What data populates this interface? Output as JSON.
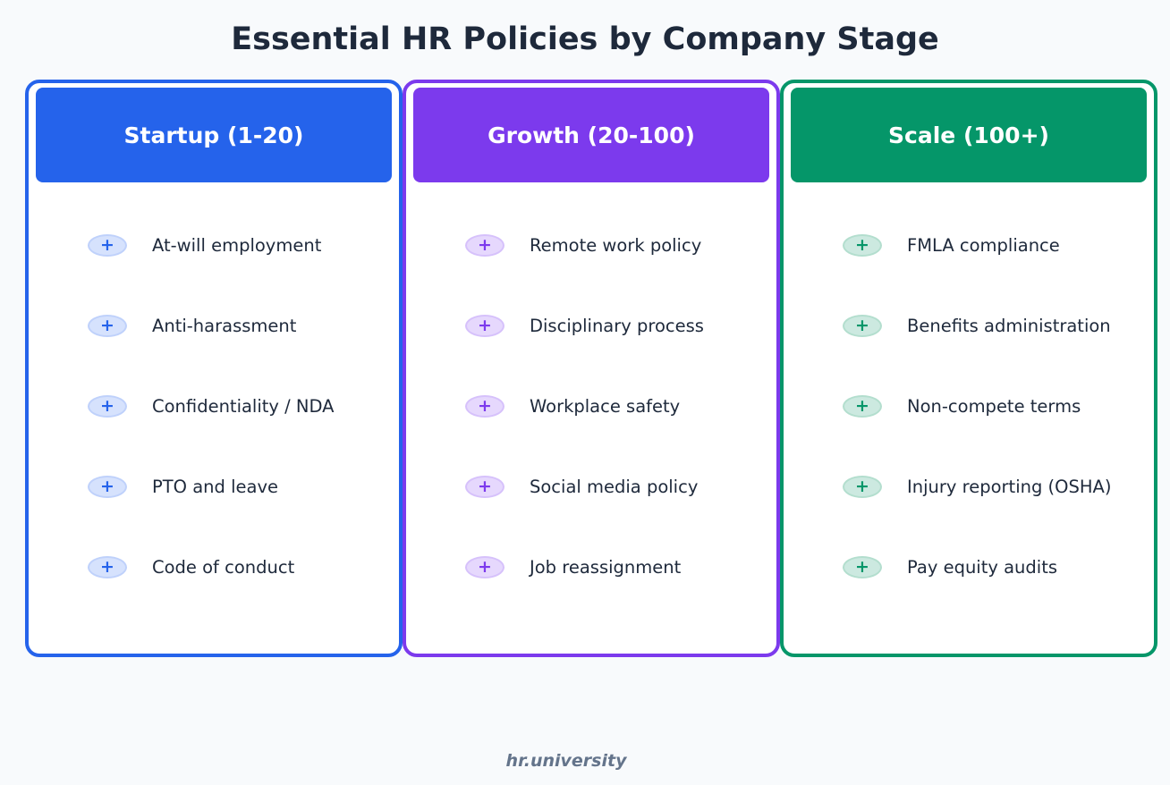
{
  "title": "Essential HR Policies by Company Stage",
  "stages": [
    {
      "header": "Startup (1-20)",
      "color": "#2563eb",
      "badge_fill": "#d6e2fd",
      "badge_stroke": "#bfd1fb",
      "icon": "plus-icon",
      "symbol": "+",
      "items": [
        "At-will employment",
        "Anti-harassment",
        "Confidentiality / NDA",
        "PTO and leave",
        "Code of conduct"
      ]
    },
    {
      "header": "Growth (20-100)",
      "color": "#7c3aed",
      "badge_fill": "#e6d8fd",
      "badge_stroke": "#d6c1fb",
      "icon": "plus-icon",
      "symbol": "+",
      "items": [
        "Remote work policy",
        "Disciplinary process",
        "Workplace safety",
        "Social media policy",
        "Job reassignment"
      ]
    },
    {
      "header": "Scale (100+)",
      "color": "#059669",
      "badge_fill": "#cce9e0",
      "badge_stroke": "#b3dece",
      "icon": "plus-icon",
      "symbol": "+",
      "items": [
        "FMLA compliance",
        "Benefits administration",
        "Non-compete terms",
        "Injury reporting (OSHA)",
        "Pay equity audits"
      ]
    }
  ],
  "footer": "hr.university"
}
